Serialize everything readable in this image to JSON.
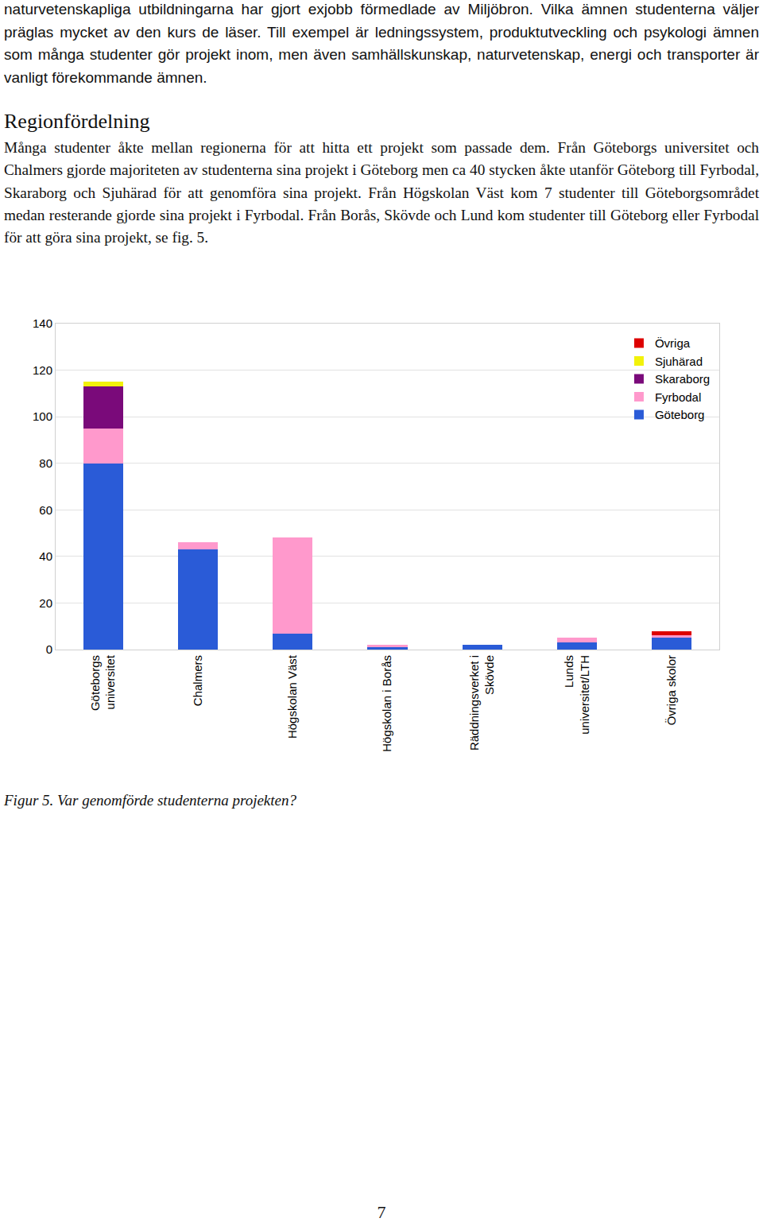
{
  "paragraphs": [
    "naturvetenskapliga utbildningarna har gjort exjobb förmedlade av Miljöbron. Vilka ämnen studenterna väljer präglas mycket av den kurs de läser. Till exempel är ledningssystem, produktutveckling och psykologi ämnen som många studenter gör projekt inom, men även samhällskunskap, naturvetenskap, energi och transporter är vanligt förekommande ämnen.",
    "Många studenter åkte mellan regionerna för att hitta ett projekt som passade dem. Från Göteborgs universitet och Chalmers gjorde majoriteten av studenterna sina projekt i Göteborg men ca 40 stycken åkte utanför Göteborg till Fyrbodal, Skaraborg och Sjuhärad för att genomföra sina projekt. Från Högskolan Väst kom 7 studenter till Göteborgsområdet medan resterande gjorde sina projekt i Fyrbodal. Från Borås, Skövde och Lund kom studenter till Göteborg eller Fyrbodal för att göra sina projekt, se fig. 5."
  ],
  "heading": "Regionfördelning",
  "figure_caption": "Figur 5. Var genomförde studenterna projekten?",
  "page_number": "7",
  "chart_data": {
    "type": "bar",
    "stacked": true,
    "categories": [
      "Göteborgs universitet",
      "Chalmers",
      "Högskolan Väst",
      "Högskolan i Borås",
      "Räddningsverket i Skövde",
      "Lunds universitet/LTH",
      "Övriga skolor"
    ],
    "series": [
      {
        "name": "Göteborg",
        "color": "#2a5bd7",
        "values": [
          80,
          43,
          7,
          1,
          2,
          3,
          5
        ]
      },
      {
        "name": "Fyrbodal",
        "color": "#ff99cc",
        "values": [
          15,
          3,
          41,
          1,
          0,
          2,
          1
        ]
      },
      {
        "name": "Skaraborg",
        "color": "#7a0a7a",
        "values": [
          18,
          0,
          0,
          0,
          0,
          0,
          0
        ]
      },
      {
        "name": "Sjuhärad",
        "color": "#f2f20a",
        "values": [
          2,
          0,
          0,
          0,
          0,
          0,
          0
        ]
      },
      {
        "name": "Övriga",
        "color": "#dd0000",
        "values": [
          0,
          0,
          0,
          0,
          0,
          0,
          2
        ]
      }
    ],
    "ylim": [
      0,
      140
    ],
    "yticks": [
      0,
      20,
      40,
      60,
      80,
      100,
      120,
      140
    ],
    "grid": true,
    "legend": "top right"
  }
}
